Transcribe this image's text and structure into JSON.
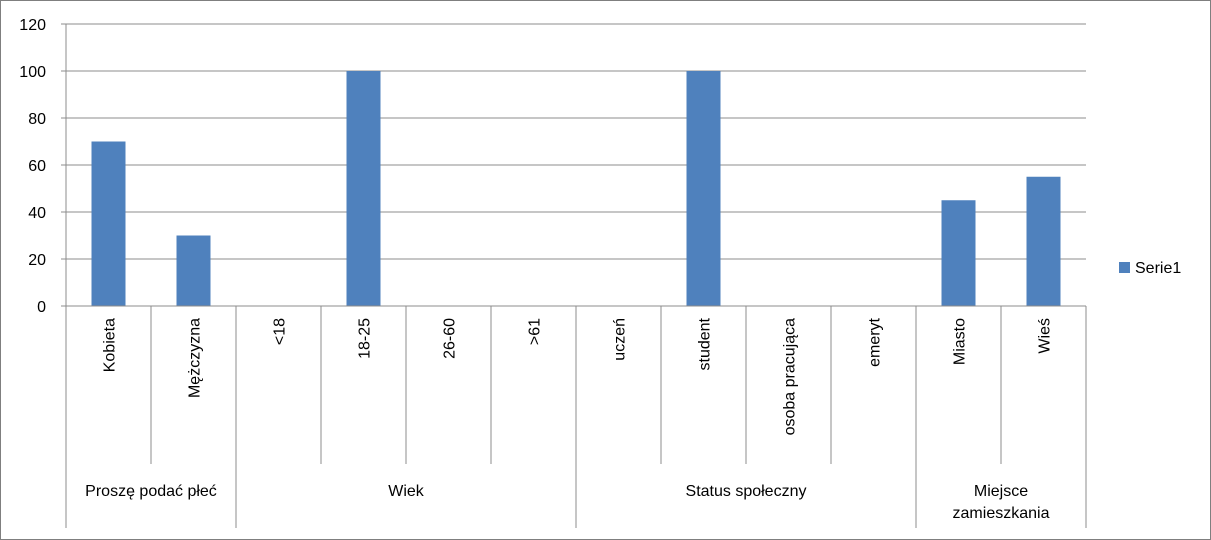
{
  "chart_data": {
    "type": "bar",
    "categories": [
      "Kobieta",
      "Mężczyzna",
      "<18",
      "18-25",
      "26-60",
      ">61",
      "uczeń",
      "student",
      "osoba pracująca",
      "emeryt",
      "Miasto",
      "Wieś"
    ],
    "groups": [
      {
        "label": "Proszę podać płeć",
        "count": 2
      },
      {
        "label": "Wiek",
        "count": 4
      },
      {
        "label": "Status społeczny",
        "count": 4
      },
      {
        "label": "Miejsce zamieszkania",
        "count": 2
      }
    ],
    "series": [
      {
        "name": "Serie1",
        "values": [
          70,
          30,
          0,
          100,
          0,
          0,
          0,
          100,
          0,
          0,
          45,
          55
        ],
        "color": "#4f81bd"
      }
    ],
    "ylim": [
      0,
      120
    ],
    "yticks": [
      0,
      20,
      40,
      60,
      80,
      100,
      120
    ],
    "grid": true,
    "legend": "right",
    "colors": {
      "gridline": "#8c8c8c",
      "axis": "#8c8c8c",
      "border": "#7f7f7f"
    }
  }
}
